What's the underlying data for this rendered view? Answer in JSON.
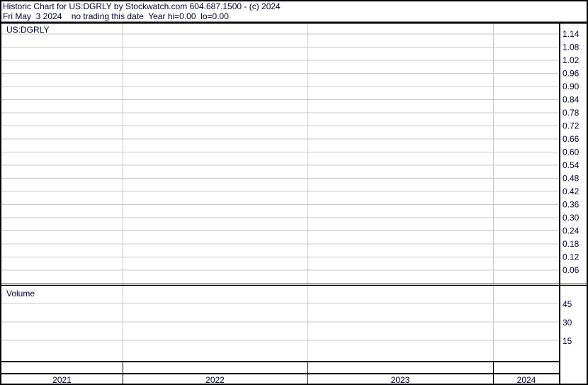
{
  "header": {
    "title": "Historic Chart for US:DGRLY by Stockwatch.com 604.687.1500 - (c) 2024",
    "subtitle": "Fri May  3 2024    no trading this date  Year hi=0.00  lo=0.00"
  },
  "chart_data": [
    {
      "type": "line",
      "panel": "price",
      "label": "US:DGRLY",
      "y_ticks": [
        "1.14",
        "1.08",
        "1.02",
        "0.96",
        "0.90",
        "0.84",
        "0.78",
        "0.72",
        "0.66",
        "0.60",
        "0.54",
        "0.48",
        "0.42",
        "0.36",
        "0.30",
        "0.24",
        "0.18",
        "0.12",
        "0.06"
      ],
      "ylim": [
        0.0,
        1.14
      ],
      "x_tick_labels": [
        "2021",
        "2022",
        "2023",
        "2024"
      ],
      "grid": true,
      "series": []
    },
    {
      "type": "bar",
      "panel": "volume",
      "label": "Volume",
      "y_ticks": [
        "45",
        "30",
        "15"
      ],
      "ylim": [
        0,
        45
      ],
      "grid": true,
      "series": []
    }
  ],
  "colors": {
    "text": "#000033",
    "grid": "#c8c8c8",
    "frame": "#000000"
  }
}
